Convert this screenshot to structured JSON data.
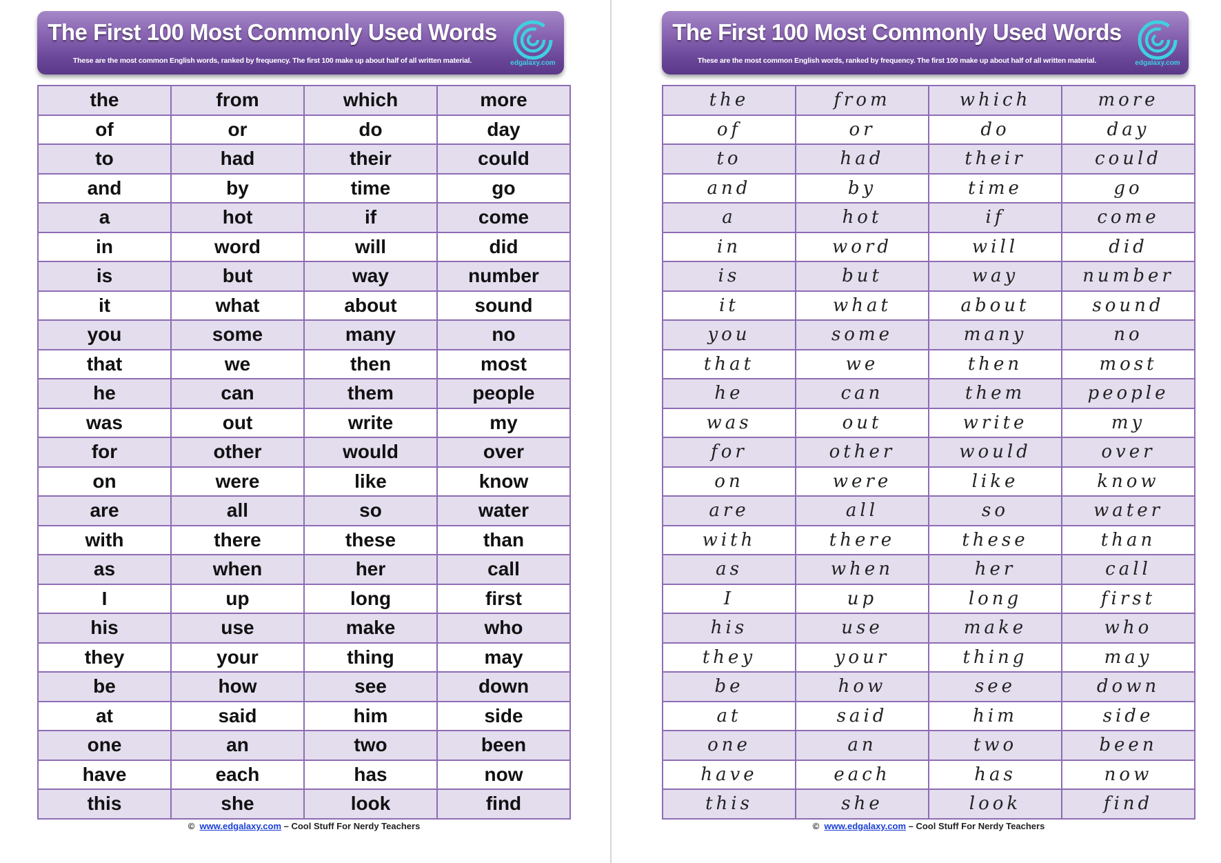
{
  "header": {
    "title": "The First 100 Most Commonly Used Words",
    "subtitle": "These are the most common English words, ranked by frequency. The first 100 make up about half of all written material.",
    "logo_text": "edgalaxy.com"
  },
  "footer": {
    "copyright": "©",
    "link": "www.edgalaxy.com",
    "tagline": " – Cool Stuff For Nerdy Teachers"
  },
  "colors": {
    "banner": "#7a55a8",
    "border": "#8e6cb4",
    "row_shade": "#e3ddee",
    "logo": "#3fd0e0"
  },
  "words": [
    [
      "the",
      "from",
      "which",
      "more"
    ],
    [
      "of",
      "or",
      "do",
      "day"
    ],
    [
      "to",
      "had",
      "their",
      "could"
    ],
    [
      "and",
      "by",
      "time",
      "go"
    ],
    [
      "a",
      "hot",
      "if",
      "come"
    ],
    [
      "in",
      "word",
      "will",
      "did"
    ],
    [
      "is",
      "but",
      "way",
      "number"
    ],
    [
      "it",
      "what",
      "about",
      "sound"
    ],
    [
      "you",
      "some",
      "many",
      "no"
    ],
    [
      "that",
      "we",
      "then",
      "most"
    ],
    [
      "he",
      "can",
      "them",
      "people"
    ],
    [
      "was",
      "out",
      "write",
      "my"
    ],
    [
      "for",
      "other",
      "would",
      "over"
    ],
    [
      "on",
      "were",
      "like",
      "know"
    ],
    [
      "are",
      "all",
      "so",
      "water"
    ],
    [
      "with",
      "there",
      "these",
      "than"
    ],
    [
      "as",
      "when",
      "her",
      "call"
    ],
    [
      "I",
      "up",
      "long",
      "first"
    ],
    [
      "his",
      "use",
      "make",
      "who"
    ],
    [
      "they",
      "your",
      "thing",
      "may"
    ],
    [
      "be",
      "how",
      "see",
      "down"
    ],
    [
      "at",
      "said",
      "him",
      "side"
    ],
    [
      "one",
      "an",
      "two",
      "been"
    ],
    [
      "have",
      "each",
      "has",
      "now"
    ],
    [
      "this",
      "she",
      "look",
      "find"
    ]
  ]
}
